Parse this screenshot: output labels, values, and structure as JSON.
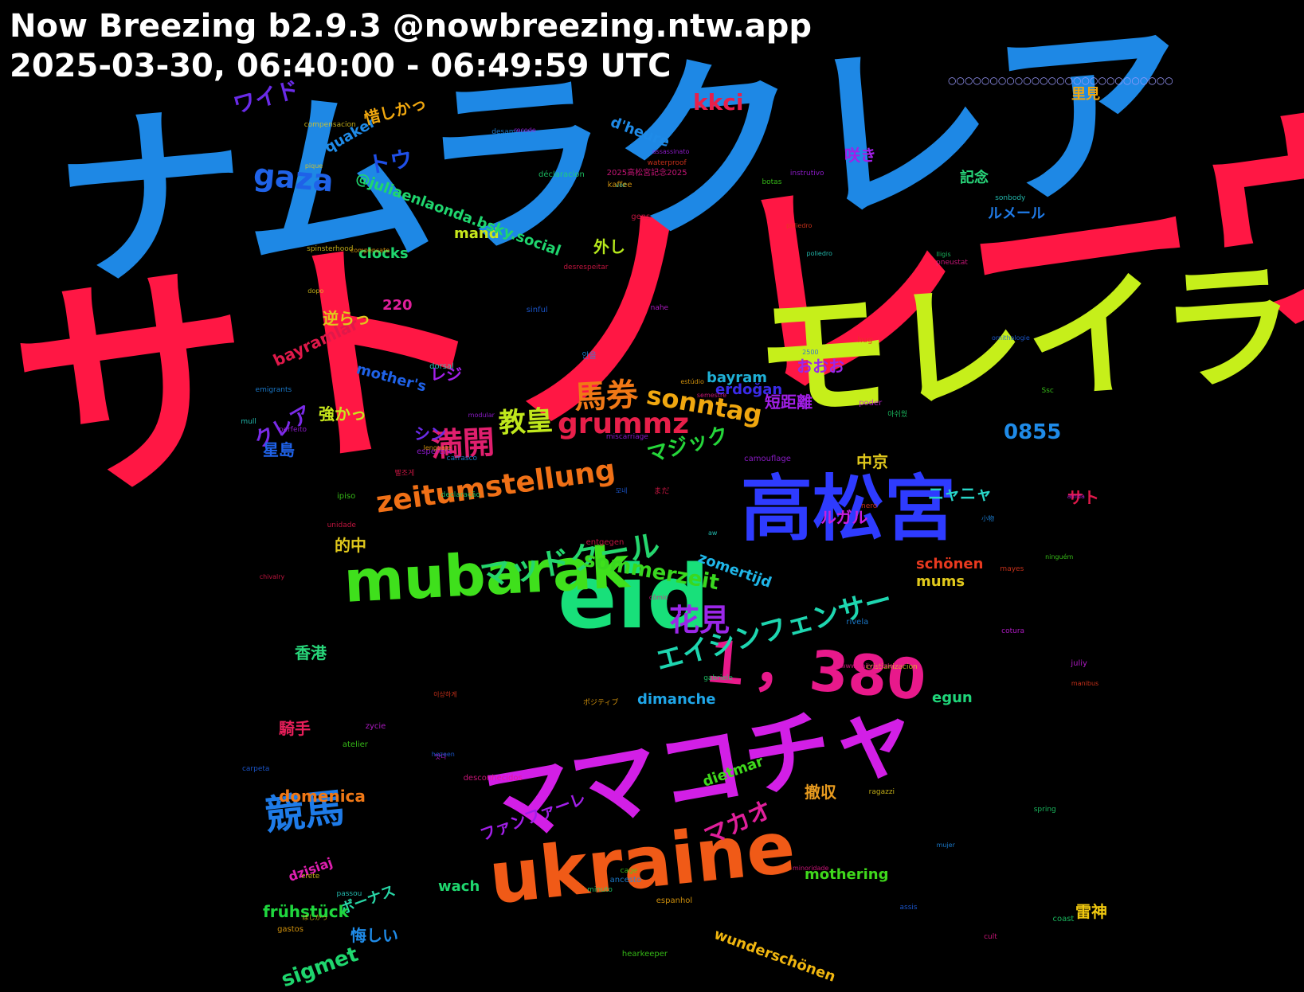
{
  "header": {
    "title": "Now Breezing b2.9.3 @nowbreezing.ntw.app",
    "time_range": "2025-03-30, 06:40:00 - 06:49:59 UTC"
  },
  "words": [
    {
      "t": "サトノレーヴ",
      "c": "#ff1744"
    },
    {
      "t": "ナムラクレア",
      "c": "#1e88e5"
    },
    {
      "t": "モレイラ",
      "c": "#c6ef1a"
    },
    {
      "t": "eid",
      "c": "#18e07a"
    },
    {
      "t": "高松宮",
      "c": "#2e3bff"
    },
    {
      "t": "ママコチャ",
      "c": "#d21fe6"
    },
    {
      "t": "ukraine",
      "c": "#f05a17"
    },
    {
      "t": "mubarak",
      "c": "#3fe01c"
    },
    {
      "t": "１，380",
      "c": "#e8198b"
    },
    {
      "t": "競馬",
      "c": "#1e7be8"
    },
    {
      "t": "花見",
      "c": "#9b27e8"
    },
    {
      "t": "満開",
      "c": "#e01f6e"
    },
    {
      "t": "馬券",
      "c": "#f07816"
    },
    {
      "t": "教皇",
      "c": "#c0e81c"
    },
    {
      "t": "gaza",
      "c": "#1f62e8"
    },
    {
      "t": "grummz",
      "c": "#e81f4a"
    },
    {
      "t": "sonntag",
      "c": "#f0a70f"
    },
    {
      "t": "zeitumstellung",
      "c": "#f07016"
    },
    {
      "t": "マッドクール",
      "c": "#25d66e"
    },
    {
      "t": "エイシンフェンサー",
      "c": "#1ed6b0"
    },
    {
      "t": "kkci",
      "c": "#e81f4a"
    },
    {
      "t": "ワイド",
      "c": "#6a2be8"
    },
    {
      "t": "トウ",
      "c": "#1f4fe8"
    },
    {
      "t": "クレア",
      "c": "#7a2be8"
    },
    {
      "t": "マジック",
      "c": "#25d63a"
    },
    {
      "t": "マカオ",
      "c": "#e01f9b"
    },
    {
      "t": "sommerzeit",
      "c": "#39d81f"
    },
    {
      "t": "sigmet",
      "c": "#1fd66e"
    },
    {
      "t": "0855",
      "c": "#1f8be8"
    },
    {
      "t": "騎手",
      "c": "#e81f5a"
    },
    {
      "t": "香港",
      "c": "#28d67a"
    },
    {
      "t": "撤収",
      "c": "#e89b1f"
    },
    {
      "t": "ボーナス",
      "c": "#28d6a6"
    },
    {
      "t": "ファンファーレ",
      "c": "#a21fe8"
    },
    {
      "t": "frühstück",
      "c": "#1fd63e"
    },
    {
      "t": "domenica",
      "c": "#f07816"
    },
    {
      "t": "bayramlar",
      "c": "#e0194a"
    },
    {
      "t": "mums",
      "c": "#e0c81c"
    },
    {
      "t": "mothering",
      "c": "#3fd81c"
    },
    {
      "t": "mother's",
      "c": "#1f62e8"
    },
    {
      "t": "wunderschönen",
      "c": "#f0b60f"
    },
    {
      "t": "schönen",
      "c": "#e8391f"
    },
    {
      "t": "dimanche",
      "c": "#1fa6e8"
    },
    {
      "t": "egun",
      "c": "#1fd67a"
    },
    {
      "t": "erdoğan",
      "c": "#3a2be8"
    },
    {
      "t": "bayram",
      "c": "#1fb0d6"
    },
    {
      "t": "zomertijd",
      "c": "#1fb6e8"
    },
    {
      "t": "dietmar",
      "c": "#3fd81c"
    },
    {
      "t": "dzisiaj",
      "c": "#e01fb0"
    },
    {
      "t": "wach",
      "c": "#1fd66e"
    },
    {
      "t": "quaker",
      "c": "#1f8be8"
    },
    {
      "t": "clocks",
      "c": "#1fd66e"
    },
    {
      "t": "mand",
      "c": "#c8e81c"
    },
    {
      "t": "220",
      "c": "#e01f9b"
    },
    {
      "t": "d'heure",
      "c": "#1f8be8"
    },
    {
      "t": "@juliaenlaonda.bsky.social",
      "c": "#1fd66e"
    },
    {
      "t": "里見",
      "c": "#f0a70f"
    },
    {
      "t": "記念",
      "c": "#28d67a"
    },
    {
      "t": "咲き",
      "c": "#a21fe8"
    },
    {
      "t": "ルメール",
      "c": "#1f7be8"
    },
    {
      "t": "外し",
      "c": "#b6e81c"
    },
    {
      "t": "逆らっ",
      "c": "#e0c81c"
    },
    {
      "t": "惜しかっ",
      "c": "#f0a70f"
    },
    {
      "t": "強かっ",
      "c": "#c8e81c"
    },
    {
      "t": "レジ",
      "c": "#a21fe8"
    },
    {
      "t": "シン",
      "c": "#6a2be8"
    },
    {
      "t": "おおお",
      "c": "#9b27e8"
    },
    {
      "t": "短距離",
      "c": "#a21fe8"
    },
    {
      "t": "中京",
      "c": "#e0c81c"
    },
    {
      "t": "ニャニャ",
      "c": "#28d6c8"
    },
    {
      "t": "サト",
      "c": "#e0194a"
    },
    {
      "t": "ルガル",
      "c": "#c81fe0"
    },
    {
      "t": "的中",
      "c": "#e0c81c"
    },
    {
      "t": "星島",
      "c": "#1f62e8"
    },
    {
      "t": "雷神",
      "c": "#f0c80f"
    },
    {
      "t": "悔しい",
      "c": "#1f8be8"
    },
    {
      "t": "○○○○○○○○○○○○○○○○○○○○○○○○○○○",
      "c": "#9b9bff"
    }
  ],
  "small_words": [
    "cômic",
    "declaração",
    "crete",
    "안을",
    "instrutivo",
    "이상하게",
    "aw",
    "gastos",
    "ipiso",
    "빨조게",
    "2500",
    "ainda",
    "semestre",
    "아쉬웠",
    "ほしかっ",
    "小物",
    "camouflage",
    "poliedro",
    "voz",
    "ポジティブ",
    "Ssc",
    "まだ",
    "모네",
    "맛다",
    "desconhecidos",
    "coast",
    "cristianizacion",
    "emigrants",
    "esperent",
    "hug",
    "mull",
    "kaffee",
    "cage",
    "gens",
    "ornithologie",
    "zycie",
    "minoridade",
    "Iligis",
    "compensacion",
    "mujer",
    "assassinato",
    "waterproof",
    "dorsal",
    "compensate",
    "botas",
    "unidade",
    "carpeta",
    "poder",
    "www.dailypuzzle.de",
    "déclaracion",
    "pique",
    "desamurras",
    "miscarriage",
    "mayes",
    "passou",
    "espanhol",
    "hearkeeper",
    "entgegen",
    "assis",
    "juliy",
    "2025高松宮記念2025",
    "gabriele",
    "ragazzi",
    "ancesto",
    "perfeito",
    "manibus",
    "poliedro",
    "estúdio",
    "ninguém",
    "desrespeitar",
    "hozeen",
    "cotura",
    "pneustat",
    "minuto",
    "spinsterhood",
    "carrasco",
    "recode",
    "nero",
    "sonbody",
    "lenguaje",
    "atelier",
    "chivalry",
    "sinful",
    "nahe",
    "cult",
    "spring",
    "dopo",
    "rivela",
    "modular"
  ]
}
